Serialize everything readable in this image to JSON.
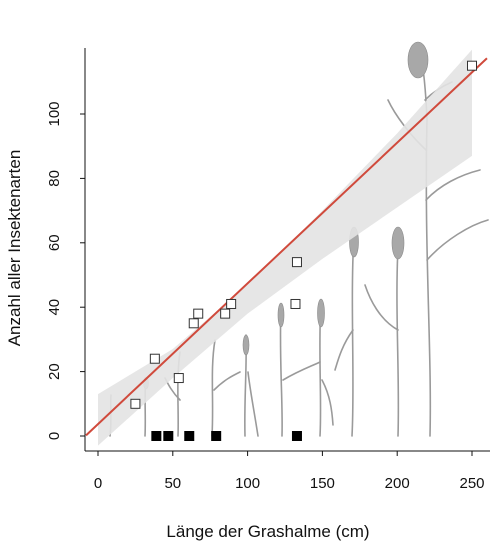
{
  "chart_data": {
    "type": "scatter",
    "xlabel": "Länge der Grashalme (cm)",
    "ylabel": "Anzahl aller Insektenarten",
    "xlim": [
      -8,
      260
    ],
    "ylim": [
      -5,
      120
    ],
    "xticks": [
      0,
      50,
      100,
      150,
      200,
      250
    ],
    "yticks": [
      0,
      20,
      40,
      60,
      80,
      100
    ],
    "series": [
      {
        "marker": "open-square",
        "color": "#333333",
        "points": [
          {
            "x": 25,
            "y": 10
          },
          {
            "x": 38,
            "y": 24
          },
          {
            "x": 54,
            "y": 18
          },
          {
            "x": 64,
            "y": 35
          },
          {
            "x": 67,
            "y": 38
          },
          {
            "x": 85,
            "y": 38
          },
          {
            "x": 89,
            "y": 41
          },
          {
            "x": 132,
            "y": 41
          },
          {
            "x": 133,
            "y": 54
          },
          {
            "x": 250,
            "y": 115
          }
        ]
      },
      {
        "marker": "filled-square",
        "color": "#000000",
        "points": [
          {
            "x": 39,
            "y": 0
          },
          {
            "x": 47,
            "y": 0
          },
          {
            "x": 61,
            "y": 0
          },
          {
            "x": 79,
            "y": 0
          },
          {
            "x": 133,
            "y": 0
          }
        ]
      }
    ],
    "regression_line": {
      "color": "#d04a3c",
      "intercept": 3.7,
      "slope": 0.437
    },
    "confidence_band": {
      "color": "#e3e3e3",
      "x": [
        0,
        50,
        100,
        150,
        200,
        250
      ],
      "lower": [
        -3,
        18,
        38,
        55,
        71,
        87
      ],
      "upper": [
        13,
        27,
        47,
        70,
        94,
        120
      ]
    },
    "grid": false,
    "background_illustration": "grass-stalks"
  }
}
